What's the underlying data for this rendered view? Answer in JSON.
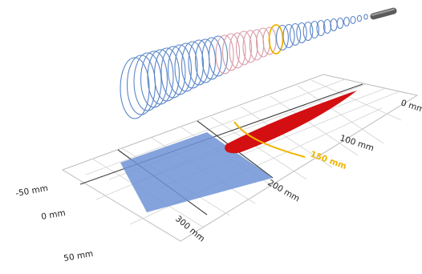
{
  "figure": {
    "axis_labels_lateral": [
      "-50 mm",
      "0 mm",
      "50 mm"
    ],
    "axis_labels_depth": [
      "0 mm",
      "100 mm",
      "200 mm",
      "300 mm"
    ],
    "highlight_label": "150 mm",
    "colors": {
      "grid": "#c9c9c9",
      "grid_major": "#3d3d3d",
      "blue_region": "#6f93d6",
      "red_region": "#d40f12",
      "coil_blue": "#5b86c9",
      "coil_pink": "#d99aa7",
      "highlight": "#f0b400",
      "transducer": "#5b5b5b"
    }
  }
}
